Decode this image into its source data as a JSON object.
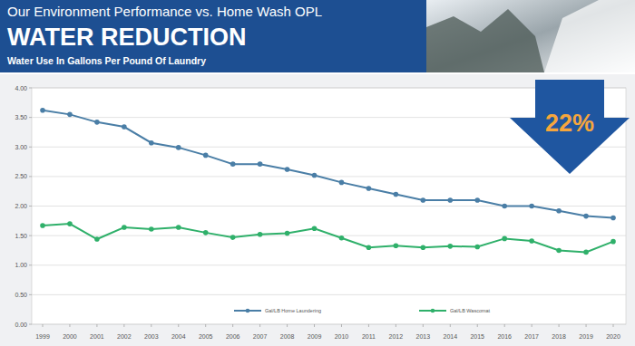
{
  "chart_data": {
    "type": "line",
    "heading": "Our Environment Performance vs. Home Wash OPL",
    "title": "WATER REDUCTION",
    "subtitle": "Water Use In Gallons Per Pound Of Laundry",
    "annotations": [
      "22%"
    ],
    "categories": [
      "1999",
      "2000",
      "2001",
      "2002",
      "2003",
      "2004",
      "2005",
      "2006",
      "2007",
      "2008",
      "2009",
      "2010",
      "2011",
      "2012",
      "2013",
      "2014",
      "2015",
      "2016",
      "2017",
      "2018",
      "2019",
      "2020"
    ],
    "series": [
      {
        "name": "Gal/LB Home Laundering",
        "color": "#4a7ea6",
        "marker": "circle",
        "values": [
          3.62,
          3.55,
          3.42,
          3.34,
          3.07,
          2.99,
          2.86,
          2.71,
          2.71,
          2.62,
          2.52,
          2.4,
          2.3,
          2.2,
          2.1,
          2.1,
          2.1,
          2.0,
          2.0,
          1.92,
          1.83,
          1.8
        ]
      },
      {
        "name": "Gal/LB Wascomat",
        "color": "#2fb06a",
        "marker": "circle",
        "values": [
          1.67,
          1.7,
          1.44,
          1.64,
          1.61,
          1.64,
          1.55,
          1.47,
          1.52,
          1.54,
          1.62,
          1.46,
          1.3,
          1.33,
          1.3,
          1.32,
          1.31,
          1.45,
          1.41,
          1.25,
          1.22,
          1.4
        ]
      }
    ],
    "ylim": [
      0,
      4
    ],
    "yticks": [
      {
        "value": 0,
        "label": "0.00"
      },
      {
        "value": 0.5,
        "label": "0.50"
      },
      {
        "value": 1,
        "label": "1.00"
      },
      {
        "value": 1.5,
        "label": "1.50"
      },
      {
        "value": 2,
        "label": "2.00"
      },
      {
        "value": 2.5,
        "label": "2.50"
      },
      {
        "value": 3,
        "label": "3.00"
      },
      {
        "value": 3.5,
        "label": "3.50"
      },
      {
        "value": 4,
        "label": "4.00"
      }
    ],
    "grid": true,
    "legend": "bottom"
  }
}
